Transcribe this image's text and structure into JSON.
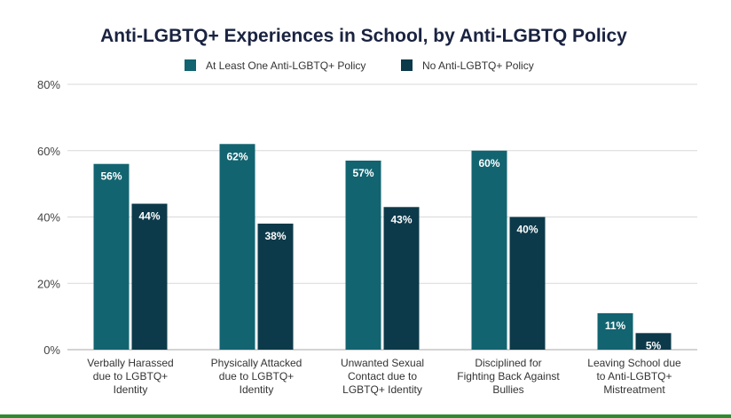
{
  "chart_data": {
    "type": "bar",
    "title": "Anti-LGBTQ+ Experiences in School, by Anti-LGBTQ Policy",
    "categories": [
      [
        "Verbally Harassed",
        "due to LGBTQ+",
        "Identity"
      ],
      [
        "Physically Attacked",
        "due to LGBTQ+",
        "Identity"
      ],
      [
        "Unwanted Sexual",
        "Contact due to",
        "LGBTQ+ Identity"
      ],
      [
        "Disciplined for",
        "Fighting Back Against",
        "Bullies"
      ],
      [
        "Leaving School due",
        "to Anti-LGBTQ+",
        "Mistreatment"
      ]
    ],
    "series": [
      {
        "name": "At Least One Anti-LGBTQ+ Policy",
        "color": "#126470",
        "values": [
          56,
          62,
          57,
          60,
          11
        ],
        "labels": [
          "56%",
          "62%",
          "57%",
          "60%",
          "11%"
        ]
      },
      {
        "name": "No Anti-LGBTQ+ Policy",
        "color": "#0c3a4a",
        "values": [
          44,
          38,
          43,
          40,
          5
        ],
        "labels": [
          "44%",
          "38%",
          "43%",
          "40%",
          "5%"
        ]
      }
    ],
    "ylim": [
      0,
      80
    ],
    "yticks": [
      {
        "value": 0,
        "label": "0%"
      },
      {
        "value": 20,
        "label": "20%"
      },
      {
        "value": 40,
        "label": "40%"
      },
      {
        "value": 60,
        "label": "60%"
      },
      {
        "value": 80,
        "label": "80%"
      }
    ],
    "legend_position": "top-center",
    "grid": true
  }
}
